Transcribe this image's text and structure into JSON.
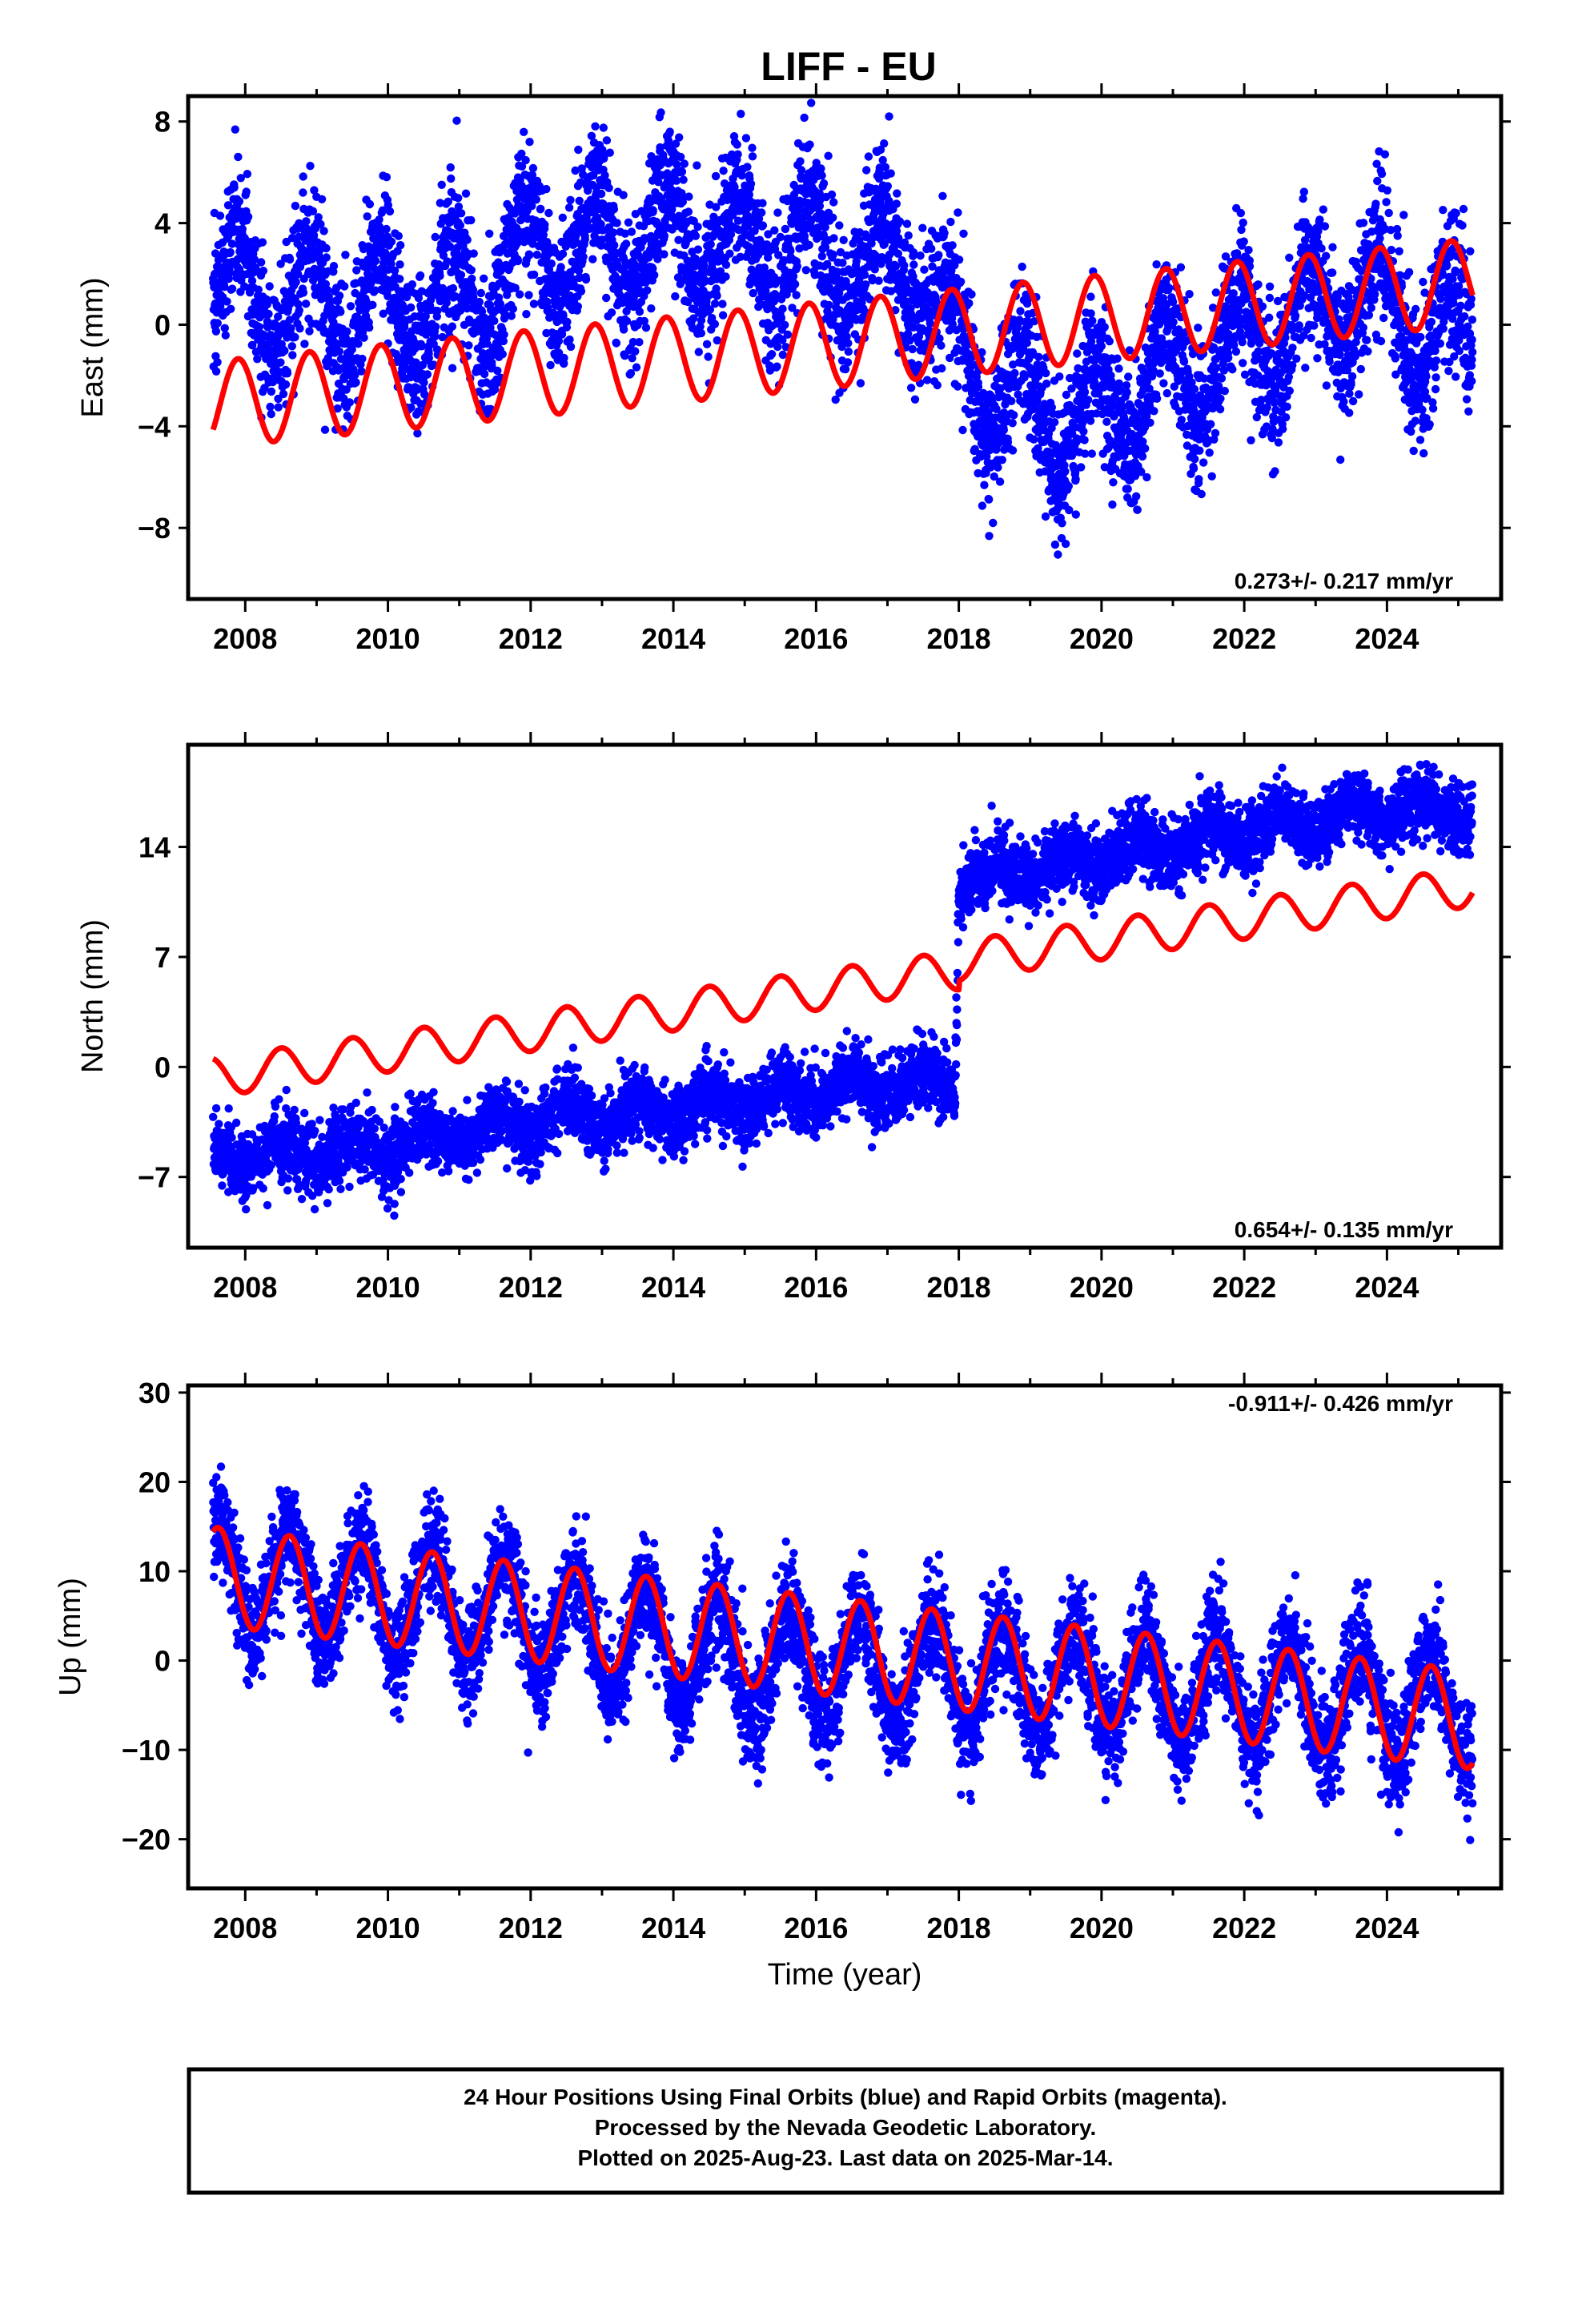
{
  "title": "LIFF - EU",
  "x_axis": {
    "ticks": [
      "2008",
      "2010",
      "2012",
      "2014",
      "2016",
      "2018",
      "2020",
      "2022",
      "2024"
    ],
    "label": "Time (year)"
  },
  "footnote": [
    "24 Hour Positions Using Final Orbits (blue) and Rapid Orbits (magenta).",
    "Processed by the Nevada Geodetic Laboratory.",
    "Plotted on 2025-Aug-23. Last data on 2025-Mar-14."
  ],
  "colors": {
    "final_orbits": "#0000ff",
    "model": "#ff0000",
    "axes": "#000000"
  },
  "chart_data": [
    {
      "type": "scatter",
      "name": "east",
      "ylabel": "East (mm)",
      "yticks": [
        "8",
        "4",
        "0",
        "−4",
        "−8"
      ],
      "ytick_values": [
        8,
        4,
        0,
        -4,
        -8
      ],
      "xlim": [
        2007.2,
        2025.6
      ],
      "ylim": [
        -10.8,
        9.0
      ],
      "rate_text": "0.273+/- 0.217 mm/yr",
      "rate_position": "bottom-right",
      "grid": false,
      "data_span": [
        2007.55,
        2025.2
      ],
      "trend_anchors": [
        [
          2007.5,
          1.6
        ],
        [
          2009.0,
          0.8
        ],
        [
          2011.0,
          0.8
        ],
        [
          2012.2,
          2.9
        ],
        [
          2014.3,
          3.4
        ],
        [
          2016.0,
          2.8
        ],
        [
          2017.5,
          2.1
        ],
        [
          2018.0,
          -1.5
        ],
        [
          2019.0,
          -3.2
        ],
        [
          2019.7,
          -3.8
        ],
        [
          2020.8,
          -2.2
        ],
        [
          2022.0,
          -0.8
        ],
        [
          2023.5,
          1.3
        ],
        [
          2025.2,
          -1.0
        ]
      ],
      "scatter_seasonal_amplitude": 2.2,
      "scatter_noise_sd": 1.4,
      "model": {
        "offset_2007": -3.15,
        "rate": 0.273,
        "seasonal_amplitude": 1.7,
        "peak_phase": 0.9
      }
    },
    {
      "type": "scatter",
      "name": "north",
      "ylabel": "North (mm)",
      "yticks": [
        "14",
        "7",
        "0",
        "−7"
      ],
      "ytick_values": [
        14,
        7,
        0,
        -7
      ],
      "xlim": [
        2007.2,
        2025.6
      ],
      "ylim": [
        -11.5,
        20.5
      ],
      "rate_text": "0.654+/- 0.135 mm/yr",
      "rate_position": "bottom-right",
      "grid": false,
      "data_span": [
        2007.55,
        2025.2
      ],
      "trend_anchors": [
        [
          2007.5,
          -5.8
        ],
        [
          2009.0,
          -5.4
        ],
        [
          2010.0,
          -5.0
        ],
        [
          2011.5,
          -3.8
        ],
        [
          2012.5,
          -3.0
        ],
        [
          2014.0,
          -2.8
        ],
        [
          2016.0,
          -1.6
        ],
        [
          2017.95,
          -0.8
        ],
        [
          2018.0,
          11.6
        ],
        [
          2020.0,
          13.5
        ],
        [
          2022.0,
          15.0
        ],
        [
          2024.0,
          16.5
        ],
        [
          2025.2,
          16.2
        ]
      ],
      "scatter_seasonal_amplitude": 0.8,
      "scatter_noise_sd": 1.1,
      "model": {
        "offset_2007": -0.7,
        "rate": 0.654,
        "seasonal_amplitude": 1.25,
        "peak_phase": 0.5,
        "step_year": 2018.0,
        "step_mm": 0.6
      }
    },
    {
      "type": "scatter",
      "name": "up",
      "ylabel": "Up (mm)",
      "yticks": [
        "30",
        "20",
        "10",
        "0",
        "−10",
        "−20"
      ],
      "ytick_values": [
        30,
        20,
        10,
        0,
        -10,
        -20
      ],
      "xlim": [
        2007.2,
        2025.6
      ],
      "ylim": [
        -25.5,
        30.8
      ],
      "rate_text": "-0.911+/- 0.426 mm/yr",
      "rate_position": "top-right",
      "grid": false,
      "data_span": [
        2007.55,
        2025.2
      ],
      "trend_anchors": [
        [
          2007.5,
          10.0
        ],
        [
          2009.0,
          8.0
        ],
        [
          2011.0,
          6.0
        ],
        [
          2013.0,
          3.0
        ],
        [
          2015.0,
          0.0
        ],
        [
          2017.0,
          -1.0
        ],
        [
          2019.0,
          -2.0
        ],
        [
          2021.0,
          -3.0
        ],
        [
          2023.0,
          -4.0
        ],
        [
          2025.2,
          -6.0
        ]
      ],
      "scatter_seasonal_amplitude": 6.0,
      "scatter_noise_sd": 3.0,
      "model": {
        "offset_2007": 9.5,
        "rate": -0.911,
        "seasonal_amplitude": 5.5,
        "peak_phase": 0.62
      }
    }
  ]
}
